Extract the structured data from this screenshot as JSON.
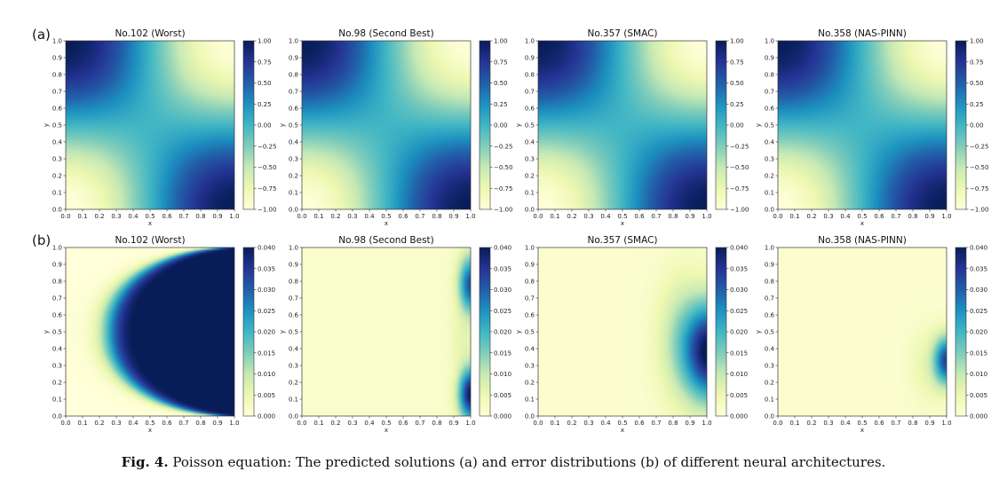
{
  "row_labels": [
    "(a)",
    "(b)"
  ],
  "caption": {
    "prefix": "Fig. 4.",
    "text": "Poisson equation: The predicted solutions (a) and error distributions (b) of different neural architectures."
  },
  "colormap": [
    "#ffffd9",
    "#edf8b1",
    "#c7e9b4",
    "#7fcdbb",
    "#41b6c4",
    "#1d91c0",
    "#225ea8",
    "#253494",
    "#081d58"
  ],
  "chart_data": [
    {
      "type": "heatmap",
      "row": "a",
      "title": "No.102 (Worst)",
      "xlabel": "x",
      "ylabel": "y",
      "xlim": [
        0,
        1
      ],
      "ylim": [
        0,
        1
      ],
      "x_ticks": [
        "0.0",
        "0.1",
        "0.2",
        "0.3",
        "0.4",
        "0.5",
        "0.6",
        "0.7",
        "0.8",
        "0.9",
        "1.0"
      ],
      "y_ticks": [
        "0.0",
        "0.1",
        "0.2",
        "0.3",
        "0.4",
        "0.5",
        "0.6",
        "0.7",
        "0.8",
        "0.9",
        "1.0"
      ],
      "colorbar_range": [
        -1,
        1
      ],
      "colorbar_ticks": [
        "1.00",
        "0.75",
        "0.50",
        "0.25",
        "0.00",
        "−0.25",
        "−0.50",
        "−0.75",
        "−1.00"
      ],
      "field": "solution"
    },
    {
      "type": "heatmap",
      "row": "a",
      "title": "No.98 (Second Best)",
      "xlabel": "x",
      "ylabel": "y",
      "xlim": [
        0,
        1
      ],
      "ylim": [
        0,
        1
      ],
      "x_ticks": [
        "0.0",
        "0.1",
        "0.2",
        "0.3",
        "0.4",
        "0.5",
        "0.6",
        "0.7",
        "0.8",
        "0.9",
        "1.0"
      ],
      "y_ticks": [
        "0.0",
        "0.1",
        "0.2",
        "0.3",
        "0.4",
        "0.5",
        "0.6",
        "0.7",
        "0.8",
        "0.9",
        "1.0"
      ],
      "colorbar_range": [
        -1,
        1
      ],
      "colorbar_ticks": [
        "1.00",
        "0.75",
        "0.50",
        "0.25",
        "0.00",
        "−0.25",
        "−0.50",
        "−0.75",
        "−1.00"
      ],
      "field": "solution"
    },
    {
      "type": "heatmap",
      "row": "a",
      "title": "No.357 (SMAC)",
      "xlabel": "x",
      "ylabel": "y",
      "xlim": [
        0,
        1
      ],
      "ylim": [
        0,
        1
      ],
      "x_ticks": [
        "0.0",
        "0.1",
        "0.2",
        "0.3",
        "0.4",
        "0.5",
        "0.6",
        "0.7",
        "0.8",
        "0.9",
        "1.0"
      ],
      "y_ticks": [
        "0.0",
        "0.1",
        "0.2",
        "0.3",
        "0.4",
        "0.5",
        "0.6",
        "0.7",
        "0.8",
        "0.9",
        "1.0"
      ],
      "colorbar_range": [
        -1,
        1
      ],
      "colorbar_ticks": [
        "1.00",
        "0.75",
        "0.50",
        "0.25",
        "0.00",
        "−0.25",
        "−0.50",
        "−0.75",
        "−1.00"
      ],
      "field": "solution"
    },
    {
      "type": "heatmap",
      "row": "a",
      "title": "No.358 (NAS-PINN)",
      "xlabel": "x",
      "ylabel": "y",
      "xlim": [
        0,
        1
      ],
      "ylim": [
        0,
        1
      ],
      "x_ticks": [
        "0.0",
        "0.1",
        "0.2",
        "0.3",
        "0.4",
        "0.5",
        "0.6",
        "0.7",
        "0.8",
        "0.9",
        "1.0"
      ],
      "y_ticks": [
        "0.0",
        "0.1",
        "0.2",
        "0.3",
        "0.4",
        "0.5",
        "0.6",
        "0.7",
        "0.8",
        "0.9",
        "1.0"
      ],
      "colorbar_range": [
        -1,
        1
      ],
      "colorbar_ticks": [
        "1.00",
        "0.75",
        "0.50",
        "0.25",
        "0.00",
        "−0.25",
        "−0.50",
        "−0.75",
        "−1.00"
      ],
      "field": "solution"
    },
    {
      "type": "heatmap",
      "row": "b",
      "title": "No.102 (Worst)",
      "xlabel": "x",
      "ylabel": "y",
      "xlim": [
        0,
        1
      ],
      "ylim": [
        0,
        1
      ],
      "x_ticks": [
        "0.0",
        "0.1",
        "0.2",
        "0.3",
        "0.4",
        "0.5",
        "0.6",
        "0.7",
        "0.8",
        "0.9",
        "1.0"
      ],
      "y_ticks": [
        "0.0",
        "0.1",
        "0.2",
        "0.3",
        "0.4",
        "0.5",
        "0.6",
        "0.7",
        "0.8",
        "0.9",
        "1.0"
      ],
      "colorbar_range": [
        0,
        0.04
      ],
      "colorbar_ticks": [
        "0.040",
        "0.035",
        "0.030",
        "0.025",
        "0.020",
        "0.015",
        "0.010",
        "0.005",
        "0.000"
      ],
      "field": "error_worst"
    },
    {
      "type": "heatmap",
      "row": "b",
      "title": "No.98 (Second Best)",
      "xlabel": "x",
      "ylabel": "y",
      "xlim": [
        0,
        1
      ],
      "ylim": [
        0,
        1
      ],
      "x_ticks": [
        "0.0",
        "0.1",
        "0.2",
        "0.3",
        "0.4",
        "0.5",
        "0.6",
        "0.7",
        "0.8",
        "0.9",
        "1.0"
      ],
      "y_ticks": [
        "0.0",
        "0.1",
        "0.2",
        "0.3",
        "0.4",
        "0.5",
        "0.6",
        "0.7",
        "0.8",
        "0.9",
        "1.0"
      ],
      "colorbar_range": [
        0,
        0.04
      ],
      "colorbar_ticks": [
        "0.040",
        "0.035",
        "0.030",
        "0.025",
        "0.020",
        "0.015",
        "0.010",
        "0.005",
        "0.000"
      ],
      "field": "error_second"
    },
    {
      "type": "heatmap",
      "row": "b",
      "title": "No.357 (SMAC)",
      "xlabel": "x",
      "ylabel": "y",
      "xlim": [
        0,
        1
      ],
      "ylim": [
        0,
        1
      ],
      "x_ticks": [
        "0.0",
        "0.1",
        "0.2",
        "0.3",
        "0.4",
        "0.5",
        "0.6",
        "0.7",
        "0.8",
        "0.9",
        "1.0"
      ],
      "y_ticks": [
        "0.0",
        "0.1",
        "0.2",
        "0.3",
        "0.4",
        "0.5",
        "0.6",
        "0.7",
        "0.8",
        "0.9",
        "1.0"
      ],
      "colorbar_range": [
        0,
        0.04
      ],
      "colorbar_ticks": [
        "0.040",
        "0.035",
        "0.030",
        "0.025",
        "0.020",
        "0.015",
        "0.010",
        "0.005",
        "0.000"
      ],
      "field": "error_smac"
    },
    {
      "type": "heatmap",
      "row": "b",
      "title": "No.358 (NAS-PINN)",
      "xlabel": "x",
      "ylabel": "y",
      "xlim": [
        0,
        1
      ],
      "ylim": [
        0,
        1
      ],
      "x_ticks": [
        "0.0",
        "0.1",
        "0.2",
        "0.3",
        "0.4",
        "0.5",
        "0.6",
        "0.7",
        "0.8",
        "0.9",
        "1.0"
      ],
      "y_ticks": [
        "0.0",
        "0.1",
        "0.2",
        "0.3",
        "0.4",
        "0.5",
        "0.6",
        "0.7",
        "0.8",
        "0.9",
        "1.0"
      ],
      "colorbar_range": [
        0,
        0.04
      ],
      "colorbar_ticks": [
        "0.040",
        "0.035",
        "0.030",
        "0.025",
        "0.020",
        "0.015",
        "0.010",
        "0.005",
        "0.000"
      ],
      "field": "error_nas"
    }
  ]
}
